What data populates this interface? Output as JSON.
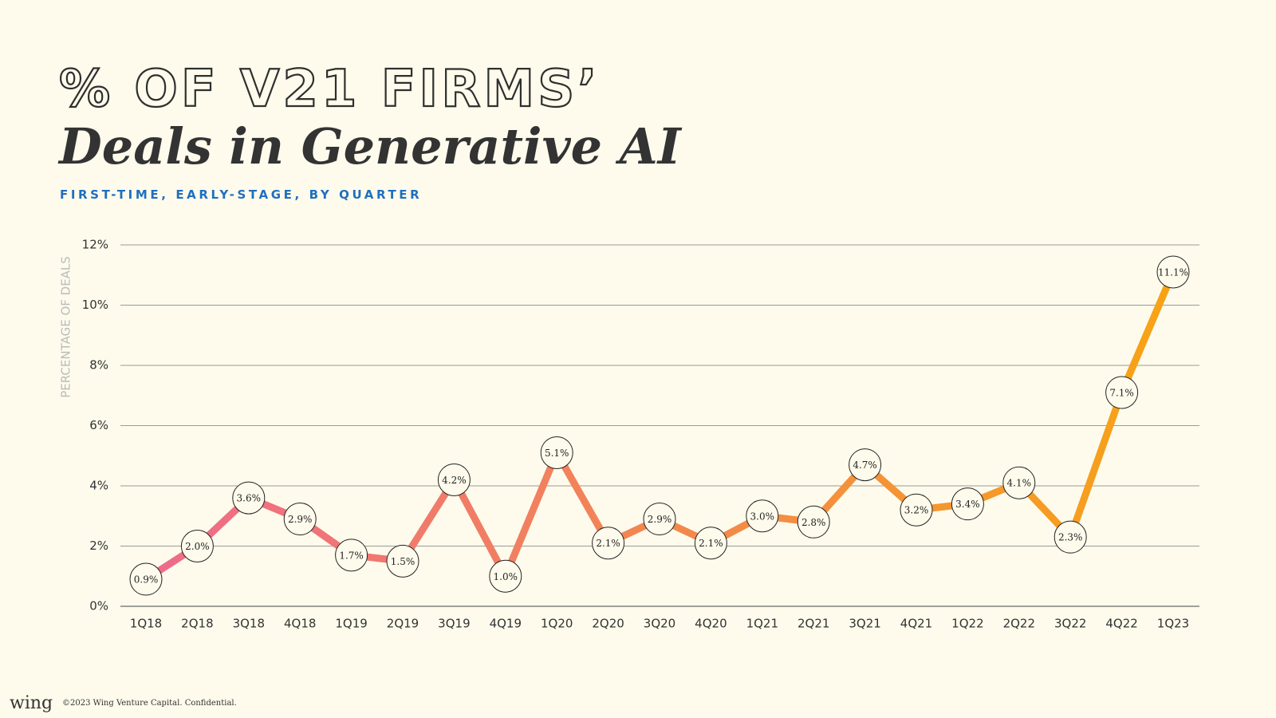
{
  "chart_data": {
    "type": "line",
    "title": "% OF V21 FIRMS’",
    "subtitle_title": "Deals in Generative AI",
    "subtitle": "FIRST-TIME, EARLY-STAGE, BY QUARTER",
    "y_label": "PERCENTAGE OF DEALS",
    "categories": [
      "1Q18",
      "2Q18",
      "3Q18",
      "4Q18",
      "1Q19",
      "2Q19",
      "3Q19",
      "4Q19",
      "1Q20",
      "2Q20",
      "3Q20",
      "4Q20",
      "1Q21",
      "2Q21",
      "3Q21",
      "4Q21",
      "1Q22",
      "2Q22",
      "3Q22",
      "4Q22",
      "1Q23"
    ],
    "values": [
      0.9,
      2.0,
      3.6,
      2.9,
      1.7,
      1.5,
      4.2,
      1.0,
      5.1,
      2.1,
      2.9,
      2.1,
      3.0,
      2.8,
      4.7,
      3.2,
      3.4,
      4.1,
      2.3,
      7.1,
      11.1
    ],
    "value_labels": [
      "0.9%",
      "2.0%",
      "3.6%",
      "2.9%",
      "1.7%",
      "1.5%",
      "4.2%",
      "1.0%",
      "5.1%",
      "2.1%",
      "2.9%",
      "2.1%",
      "3.0%",
      "2.8%",
      "4.7%",
      "3.2%",
      "3.4%",
      "4.1%",
      "2.3%",
      "7.1%",
      "11.1%"
    ],
    "line_gradient": [
      "#ee6b8b",
      "#f7a315"
    ],
    "ylim": [
      0,
      12
    ],
    "yticks": [
      {
        "value": 0,
        "label": "0%"
      },
      {
        "value": 2,
        "label": "2%"
      },
      {
        "value": 4,
        "label": "4%"
      },
      {
        "value": 6,
        "label": "6%"
      },
      {
        "value": 8,
        "label": "8%"
      },
      {
        "value": 10,
        "label": "10%"
      },
      {
        "value": 12,
        "label": "12%"
      }
    ],
    "grid": true
  },
  "footer": {
    "logo": "wing",
    "copyright": "©2023 Wing Venture Capital. Confidential."
  }
}
